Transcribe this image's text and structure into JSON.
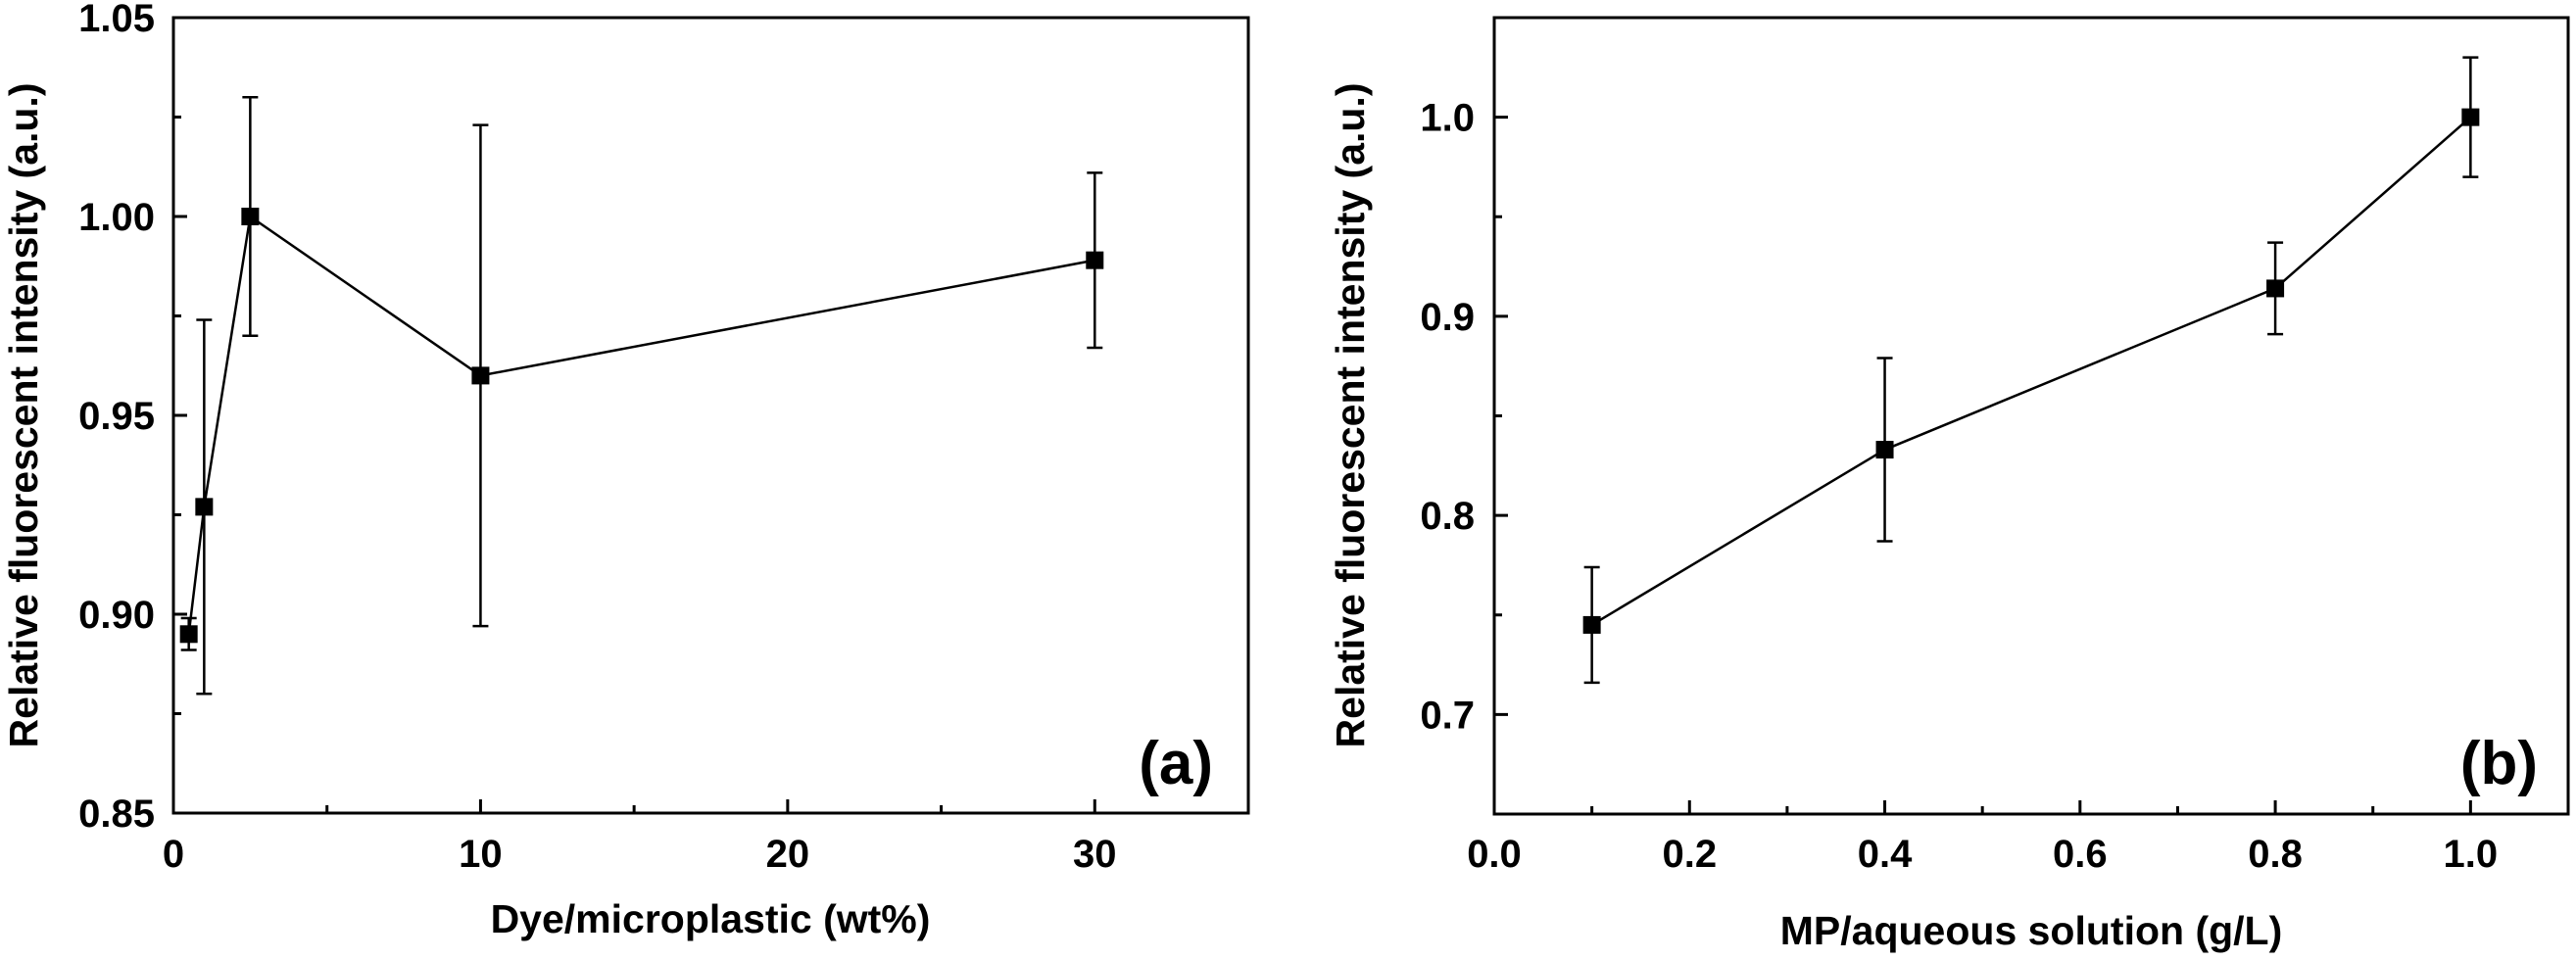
{
  "chart_data": [
    {
      "type": "line",
      "panel_label": "(a)",
      "xlabel": "Dye/microplastic (wt%)",
      "ylabel": "Relative fluorescent intensity (a.u.)",
      "xlim": [
        0,
        35
      ],
      "ylim": [
        0.85,
        1.05
      ],
      "xticks": [
        0,
        10,
        20,
        30
      ],
      "xtick_labels": [
        "0",
        "10",
        "20",
        "30"
      ],
      "xminor": [
        5,
        15,
        25
      ],
      "yticks": [
        0.85,
        0.9,
        0.95,
        1.0,
        1.05
      ],
      "ytick_labels": [
        "0.85",
        "0.90",
        "0.95",
        "1.00",
        "1.05"
      ],
      "yminor": [
        0.875,
        0.925,
        0.975,
        1.025
      ],
      "grid": false,
      "marker": "square",
      "color": "#000000",
      "series": [
        {
          "x": [
            0.5,
            1,
            2.5,
            10,
            30
          ],
          "y": [
            0.895,
            0.927,
            1.0,
            0.96,
            0.989
          ],
          "yerr": [
            0.004,
            0.047,
            0.03,
            0.063,
            0.022
          ]
        }
      ]
    },
    {
      "type": "line",
      "panel_label": "(b)",
      "xlabel": "MP/aqueous solution (g/L)",
      "ylabel": "Relative fluorescent intensity (a.u.)",
      "xlim": [
        0.0,
        1.1
      ],
      "ylim": [
        0.65,
        1.05
      ],
      "xticks": [
        0.0,
        0.2,
        0.4,
        0.6,
        0.8,
        1.0
      ],
      "xtick_labels": [
        "0.0",
        "0.2",
        "0.4",
        "0.6",
        "0.8",
        "1.0"
      ],
      "xminor": [
        0.1,
        0.3,
        0.5,
        0.7,
        0.9
      ],
      "yticks": [
        0.7,
        0.8,
        0.9,
        1.0
      ],
      "ytick_labels": [
        "0.7",
        "0.8",
        "0.9",
        "1.0"
      ],
      "yminor": [
        0.65,
        0.75,
        0.85,
        0.95
      ],
      "grid": false,
      "marker": "square",
      "color": "#000000",
      "series": [
        {
          "x": [
            0.1,
            0.4,
            0.8,
            1.0
          ],
          "y": [
            0.745,
            0.833,
            0.914,
            1.0
          ],
          "yerr": [
            0.029,
            0.046,
            0.023,
            0.03
          ]
        }
      ]
    }
  ]
}
